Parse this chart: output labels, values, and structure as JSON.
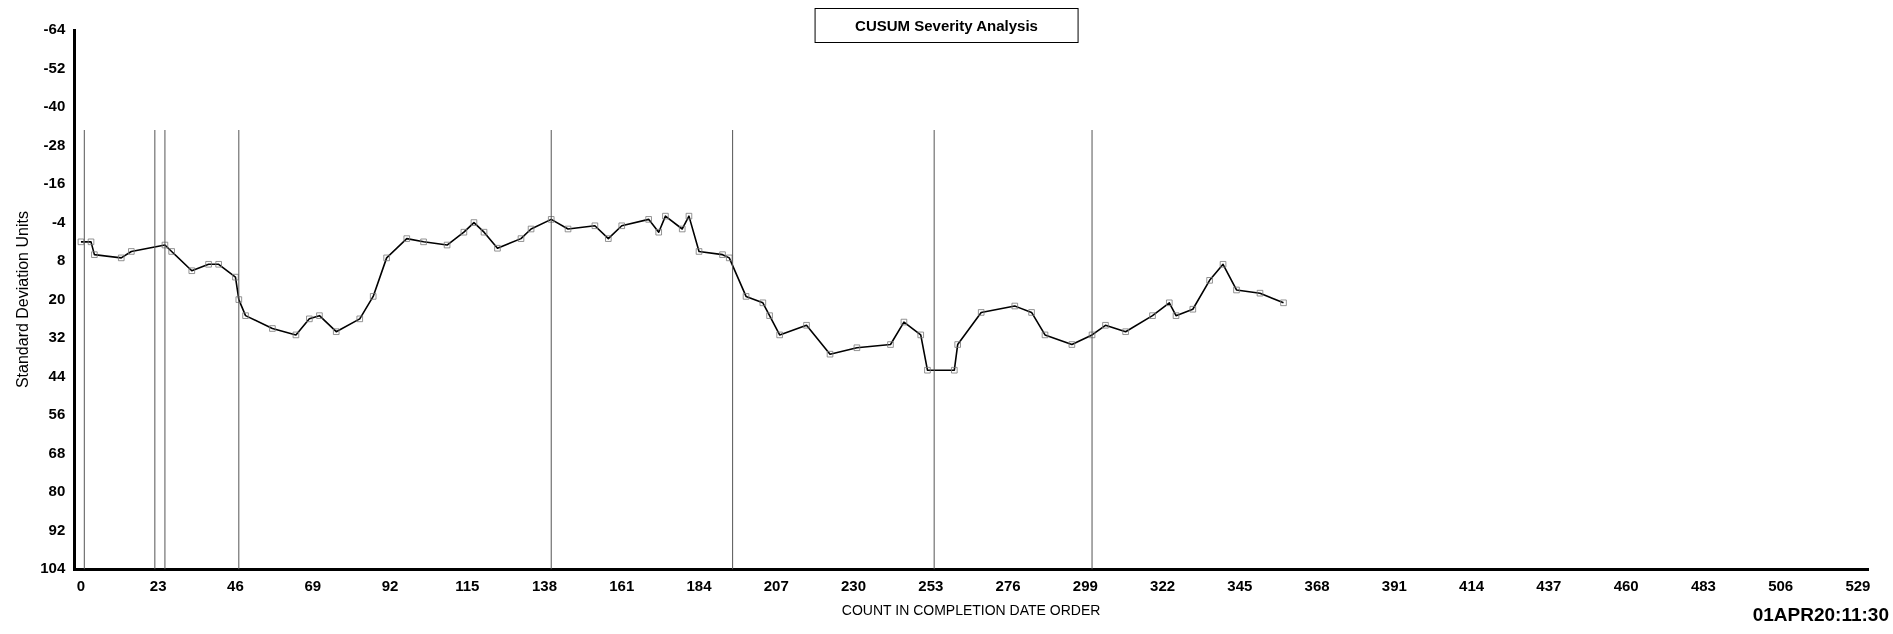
{
  "chart_data": {
    "type": "line",
    "title": "CUSUM Severity Analysis",
    "xlabel": "COUNT IN COMPLETION DATE ORDER",
    "ylabel": "Standard Deviation Units",
    "x": [
      0,
      3,
      4,
      12,
      15,
      25,
      27,
      33,
      38,
      41,
      46,
      47,
      49,
      57,
      64,
      68,
      71,
      76,
      83,
      87,
      91,
      97,
      102,
      109,
      114,
      117,
      120,
      124,
      131,
      134,
      140,
      145,
      153,
      157,
      161,
      169,
      172,
      174,
      179,
      181,
      184,
      191,
      193,
      198,
      203,
      205,
      208,
      216,
      223,
      231,
      241,
      245,
      250,
      252,
      260,
      261,
      268,
      278,
      283,
      287,
      295,
      301,
      305,
      311,
      319,
      324,
      326,
      331,
      336,
      340,
      344,
      351,
      358
    ],
    "series": [
      {
        "color": "#000000",
        "values": [
          2,
          2,
          6,
          7,
          5,
          3,
          5,
          11,
          9,
          9,
          13,
          20,
          25,
          29,
          31,
          26,
          25,
          30,
          26,
          19,
          7,
          1,
          2,
          3,
          -1,
          -4,
          -1,
          4,
          1,
          -2,
          -5,
          -2,
          -3,
          1,
          -3,
          -5,
          -1,
          -6,
          -2,
          -6,
          5,
          6,
          7,
          19,
          21,
          25,
          31,
          28,
          37,
          35,
          34,
          27,
          31,
          42,
          42,
          34,
          24,
          22,
          24,
          31,
          34,
          31,
          28,
          30,
          25,
          21,
          25,
          23,
          14,
          9,
          17,
          18,
          21
        ]
      }
    ],
    "xlim": [
      -2,
      532
    ],
    "xticks": [
      0,
      23,
      46,
      69,
      92,
      115,
      138,
      161,
      184,
      207,
      230,
      253,
      276,
      299,
      322,
      345,
      368,
      391,
      414,
      437,
      460,
      483,
      506,
      529
    ],
    "ylim": [
      104,
      -64
    ],
    "yticks": [
      -64,
      -52,
      -40,
      -28,
      -16,
      -4,
      8,
      20,
      32,
      44,
      56,
      68,
      80,
      92,
      104
    ],
    "ref_lines": [
      {
        "axis": "x",
        "value": 1
      },
      {
        "axis": "x",
        "value": 22
      },
      {
        "axis": "x",
        "value": 25
      },
      {
        "axis": "x",
        "value": 47
      },
      {
        "axis": "x",
        "value": 140
      },
      {
        "axis": "x",
        "value": 194
      },
      {
        "axis": "x",
        "value": 254
      },
      {
        "axis": "x",
        "value": 301
      }
    ],
    "marker": "square",
    "line_style": "solid",
    "grid": false,
    "legend": false,
    "annotations": [
      "01APR20:11:30"
    ]
  }
}
